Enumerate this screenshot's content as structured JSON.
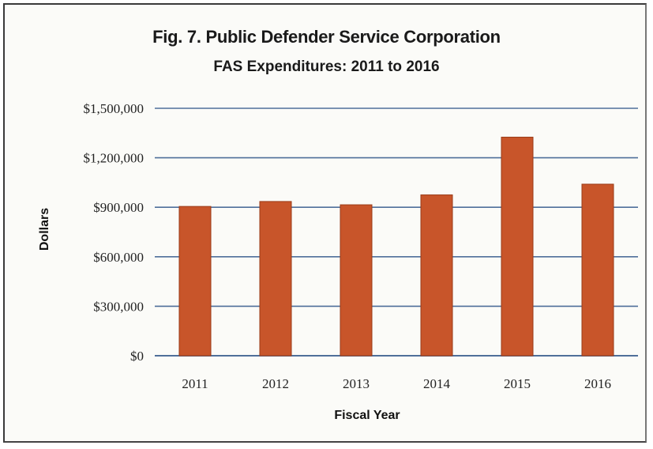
{
  "chart_data": {
    "type": "bar",
    "title": "Fig. 7. Public Defender Service Corporation",
    "subtitle": "FAS Expenditures:  2011 to 2016",
    "xlabel": "Fiscal Year",
    "ylabel": "Dollars",
    "categories": [
      "2011",
      "2012",
      "2013",
      "2014",
      "2015",
      "2016"
    ],
    "values": [
      905000,
      935000,
      915000,
      975000,
      1325000,
      1040000
    ],
    "ylim": [
      0,
      1500000
    ],
    "yticks": [
      0,
      300000,
      600000,
      900000,
      1200000,
      1500000
    ],
    "ytick_labels": [
      "$0",
      "$300,000",
      "$600,000",
      "$900,000",
      "$1,200,000",
      "$1,500,000"
    ],
    "grid": true,
    "bar_color": "#c8552a",
    "bar_edge_color": "#9a3b18",
    "grid_color": "#4f6f9a"
  }
}
